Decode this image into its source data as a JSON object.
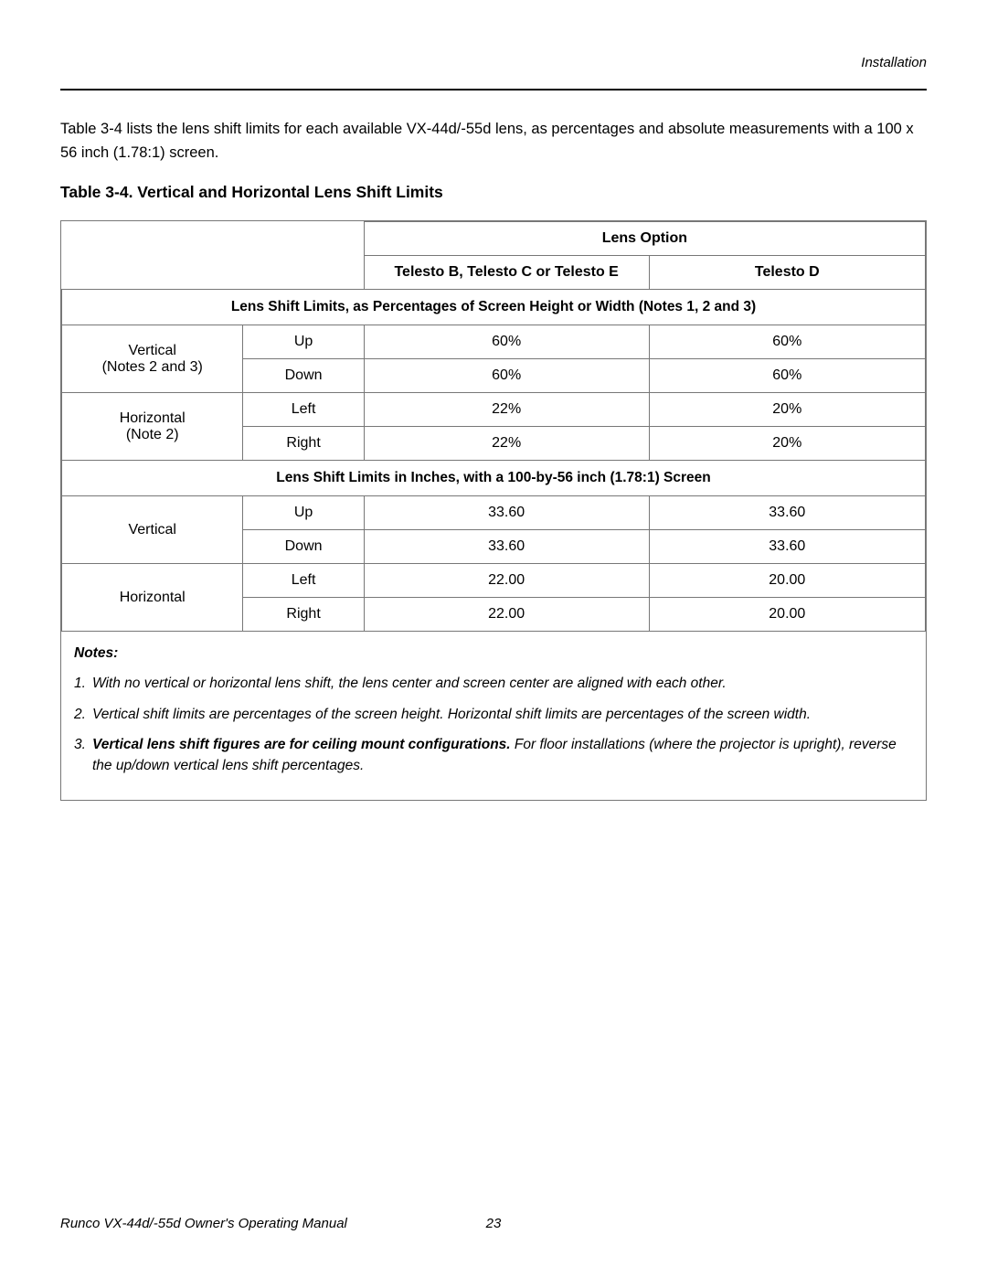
{
  "header": {
    "section": "Installation"
  },
  "intro": "Table 3-4 lists the lens shift limits for each available VX-44d/-55d lens, as percentages and absolute measurements with a 100 x 56 inch (1.78:1) screen.",
  "tableTitle": "Table 3-4. Vertical and Horizontal Lens Shift Limits",
  "table": {
    "lensOptionHeader": "Lens Option",
    "col1": "Telesto B, Telesto C or Telesto E",
    "col2": "Telesto D",
    "section1": "Lens Shift Limits, as Percentages of Screen Height or Width (Notes 1, 2 and 3)",
    "rows1": [
      {
        "cat": "Vertical",
        "catSub": "(Notes 2 and 3)",
        "dir1": "Up",
        "v1a": "60%",
        "v1b": "60%",
        "dir2": "Down",
        "v2a": "60%",
        "v2b": "60%"
      },
      {
        "cat": "Horizontal",
        "catSub": "(Note 2)",
        "dir1": "Left",
        "v1a": "22%",
        "v1b": "20%",
        "dir2": "Right",
        "v2a": "22%",
        "v2b": "20%"
      }
    ],
    "section2": "Lens Shift Limits in Inches, with a 100-by-56 inch (1.78:1) Screen",
    "rows2": [
      {
        "cat": "Vertical",
        "dir1": "Up",
        "v1a": "33.60",
        "v1b": "33.60",
        "dir2": "Down",
        "v2a": "33.60",
        "v2b": "33.60"
      },
      {
        "cat": "Horizontal",
        "dir1": "Left",
        "v1a": "22.00",
        "v1b": "20.00",
        "dir2": "Right",
        "v2a": "22.00",
        "v2b": "20.00"
      }
    ],
    "colWidths": {
      "c1": "21%",
      "c2": "14%",
      "c3": "33%",
      "c4": "32%"
    }
  },
  "notes": {
    "title": "Notes:",
    "items": [
      {
        "n": "1.",
        "text": "With no vertical or horizontal lens shift, the lens center and screen center are aligned with each other."
      },
      {
        "n": "2.",
        "text": "Vertical shift limits are percentages of the screen height. Horizontal shift limits are percentages of the screen width."
      },
      {
        "n": "3.",
        "bold": "Vertical lens shift figures are for ceiling mount configurations.",
        "rest": " For floor installations (where the projector is upright), reverse the up/down vertical lens shift percentages."
      }
    ]
  },
  "footer": {
    "manual": "Runco VX-44d/-55d Owner's Operating Manual",
    "page": "23"
  },
  "colors": {
    "text": "#000000",
    "border": "#777777",
    "bg": "#ffffff"
  }
}
